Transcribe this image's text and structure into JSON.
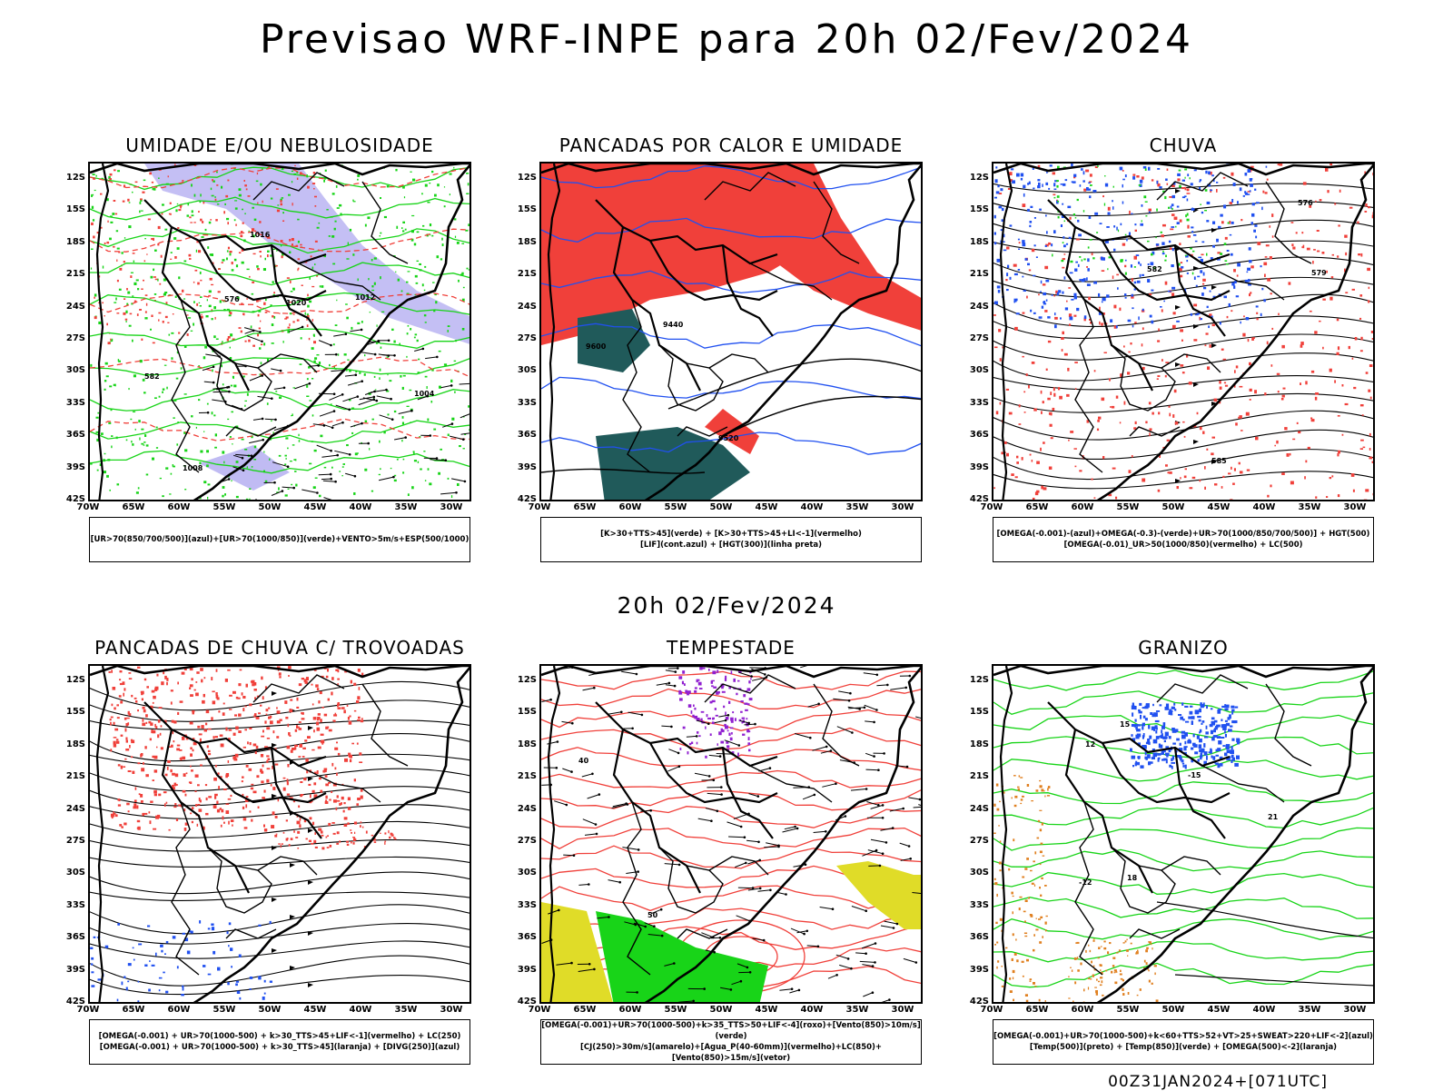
{
  "main_title": "Previsao WRF-INPE  para 20h 02/Fev/2024",
  "mid_title": "20h 02/Fev/2024",
  "footer": "00Z31JAN2024+[071UTC]",
  "lat_labels": [
    "12S",
    "15S",
    "18S",
    "21S",
    "24S",
    "27S",
    "30S",
    "33S",
    "36S",
    "39S",
    "42S"
  ],
  "lon_labels": [
    "70W",
    "65W",
    "60W",
    "55W",
    "50W",
    "45W",
    "40W",
    "35W",
    "30W"
  ],
  "colors": {
    "red": "#f0403a",
    "green": "#18d418",
    "blue": "#2050f0",
    "lavender": "#b0aaf0",
    "teal": "#205a5a",
    "yellow": "#e0dc28",
    "purple": "#9020d0",
    "orange": "#e08020"
  },
  "panels": [
    {
      "title": "UMIDADE E/OU NEBULOSIDADE",
      "theme": "umidade",
      "legend": [
        "[UR>70(850/700/500)](azul)+[UR>70(1000/850)](verde)+VENTO>5m/s+ESP(500/1000)"
      ],
      "contour_labels": [
        "1008",
        "1012",
        "1016",
        "1004",
        "1020",
        "576",
        "582"
      ]
    },
    {
      "title": "PANCADAS POR CALOR E UMIDADE",
      "theme": "pancadas",
      "legend": [
        "[K>30+TTS>45](verde)  +  [K>30+TTS>45+LI<-1](vermelho)",
        "[LIF](cont.azul)  +  [HGT(300)](linha preta)"
      ],
      "contour_labels": [
        "9600",
        "9520",
        "9440"
      ]
    },
    {
      "title": "CHUVA",
      "theme": "chuva",
      "legend": [
        "[OMEGA(-0.001)-(azul)+OMEGA(-0.3)-(verde)+UR>70(1000/850/700/500)]  +  HGT(500)",
        "[OMEGA(-0.01)_UR>50(1000/850)(vermelho)  +  LC(500)"
      ],
      "contour_labels": [
        "585",
        "582",
        "579",
        "576"
      ]
    },
    {
      "title": "PANCADAS DE CHUVA C/ TROVOADAS",
      "theme": "trovoadas",
      "legend": [
        "[OMEGA(-0.001)  +  UR>70(1000-500)  +  k>30_TTS>45+LIF<-1](vermelho)  +  LC(250)",
        "[OMEGA(-0.001)  +  UR>70(1000-500)  +  k>30_TTS>45](laranja)  +  [DIVG(250)](azul)"
      ],
      "contour_labels": []
    },
    {
      "title": "TEMPESTADE",
      "theme": "tempestade",
      "legend": [
        "[OMEGA(-0.001)+UR>70(1000-500)+k>35_TTS>50+LIF<-4](roxo)+[Vento(850)>10m/s](verde)",
        "[CJ(250)>30m/s](amarelo)+[Agua_P(40-60mm)](vermelho)+LC(850)+[Vento(850)>15m/s](vetor)"
      ],
      "contour_labels": [
        "40",
        "50"
      ]
    },
    {
      "title": "GRANIZO",
      "theme": "granizo",
      "legend": [
        "[OMEGA(-0.001)+UR>70(1000-500)+k<60+TTS>52+VT>25+SWEAT>220+LIF<-2](azul)",
        "[Temp(500)](preto)  +  [Temp(850)](verde)  +  [OMEGA(500)<-2](laranja)"
      ],
      "contour_labels": [
        "-12",
        "-15",
        "12",
        "15",
        "18",
        "21"
      ]
    }
  ]
}
